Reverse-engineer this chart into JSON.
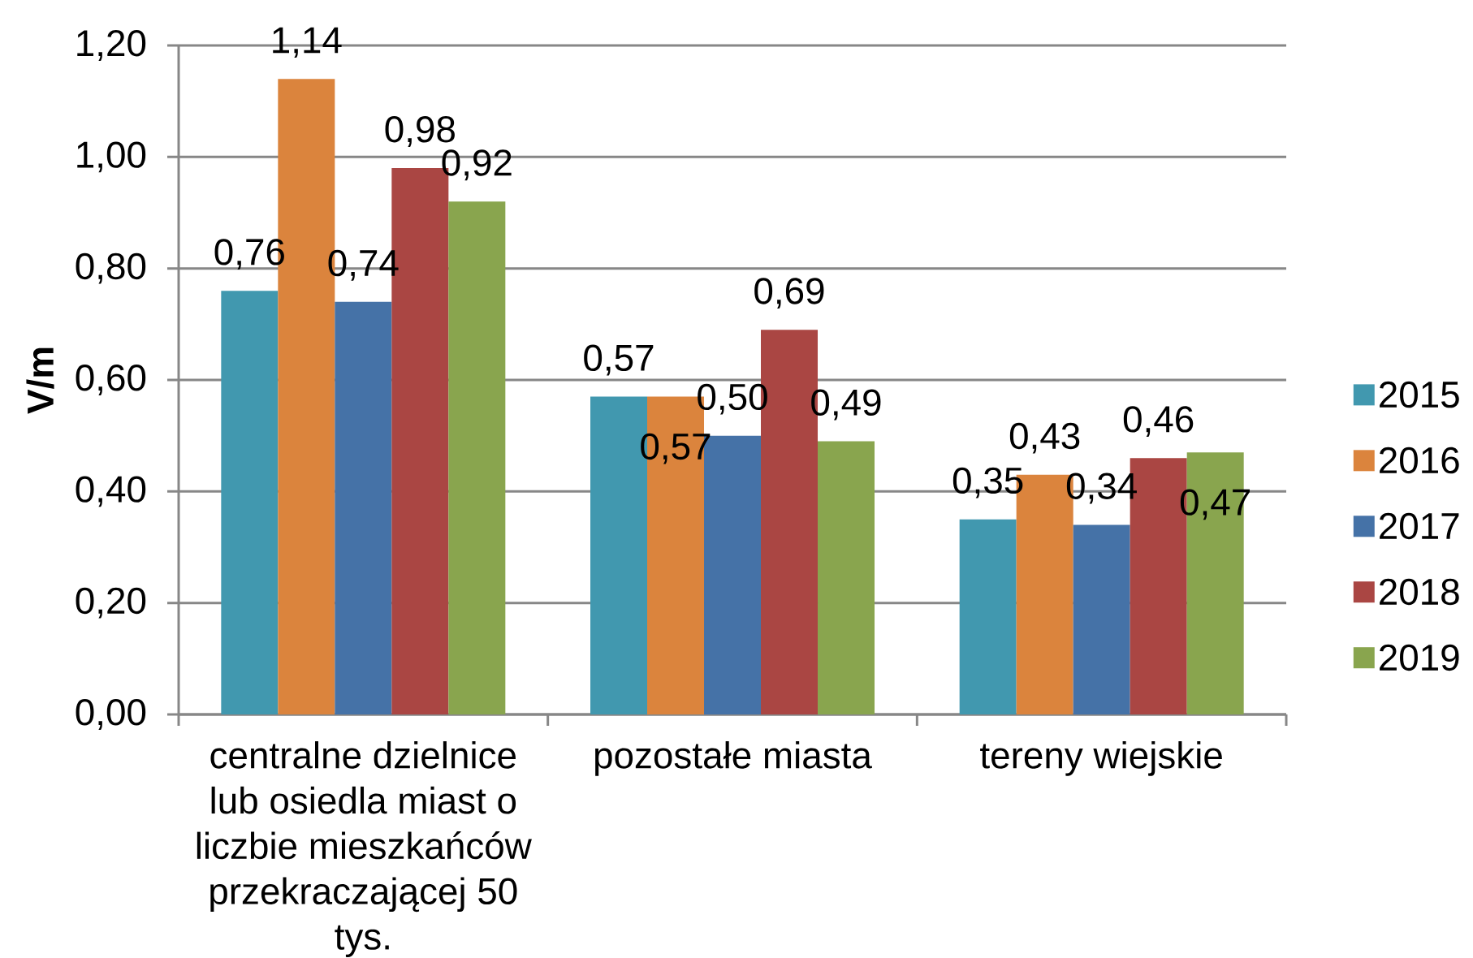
{
  "chart_data": {
    "type": "bar",
    "ylabel": "V/m",
    "categories": [
      "centralne dzielnice lub osiedla miast o liczbie mieszkańców przekraczającej 50 tys.",
      "pozostałe miasta",
      "tereny wiejskie"
    ],
    "series": [
      {
        "name": "2015",
        "color": "#4198af",
        "values": [
          0.76,
          0.57,
          0.35
        ],
        "value_labels": [
          "0,76",
          "0,57",
          "0,35"
        ]
      },
      {
        "name": "2016",
        "color": "#db843d",
        "values": [
          1.14,
          0.57,
          0.43
        ],
        "value_labels": [
          "1,14",
          "0,57",
          "0,43"
        ]
      },
      {
        "name": "2017",
        "color": "#4572a7",
        "values": [
          0.74,
          0.5,
          0.34
        ],
        "value_labels": [
          "0,74",
          "0,50",
          "0,34"
        ]
      },
      {
        "name": "2018",
        "color": "#aa4643",
        "values": [
          0.98,
          0.69,
          0.46
        ],
        "value_labels": [
          "0,98",
          "0,69",
          "0,46"
        ]
      },
      {
        "name": "2019",
        "color": "#89a54e",
        "values": [
          0.92,
          0.49,
          0.47
        ],
        "value_labels": [
          "0,92",
          "0,49",
          "0,47"
        ]
      }
    ],
    "ylim": [
      0,
      1.2
    ],
    "yticks": [
      {
        "value": 0,
        "label": "0,00"
      },
      {
        "value": 0.2,
        "label": "0,20"
      },
      {
        "value": 0.4,
        "label": "0,40"
      },
      {
        "value": 0.6,
        "label": "0,60"
      },
      {
        "value": 0.8,
        "label": "0,80"
      },
      {
        "value": 1.0,
        "label": "1,00"
      },
      {
        "value": 1.2,
        "label": "1,20"
      }
    ],
    "grid": "y",
    "legend": "right"
  }
}
